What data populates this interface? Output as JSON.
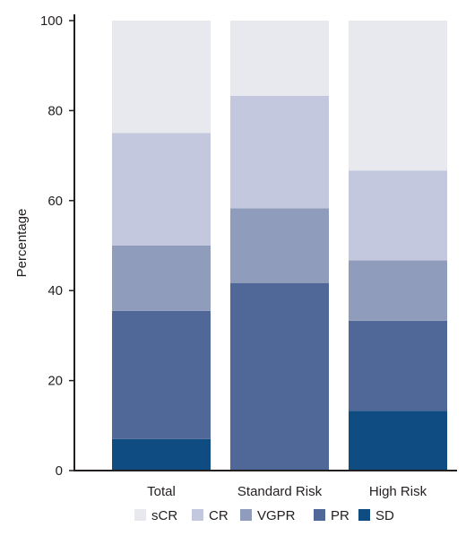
{
  "chart_data": {
    "type": "bar",
    "stacked": true,
    "categories": [
      "Total",
      "Standard Risk",
      "High Risk"
    ],
    "series": [
      {
        "name": "SD",
        "color": "#0f4c81",
        "values": [
          7,
          0,
          13.3
        ]
      },
      {
        "name": "PR",
        "color": "#4f6898",
        "values": [
          28.5,
          41.7,
          20
        ]
      },
      {
        "name": "VGPR",
        "color": "#8f9cbb",
        "values": [
          14.5,
          16.6,
          13.4
        ]
      },
      {
        "name": "CR",
        "color": "#c4c8de",
        "values": [
          25,
          25,
          20
        ]
      },
      {
        "name": "sCR",
        "color": "#e8e9ee",
        "values": [
          25,
          16.7,
          33.3
        ]
      }
    ],
    "legend_order": [
      "sCR",
      "CR",
      "VGPR",
      "PR",
      "SD"
    ],
    "legend_position": "bottom",
    "ylabel": "Percentage",
    "xlabel": "",
    "ylim": [
      0,
      100
    ],
    "yticks": [
      0,
      20,
      40,
      60,
      80,
      100
    ],
    "grid": false
  }
}
